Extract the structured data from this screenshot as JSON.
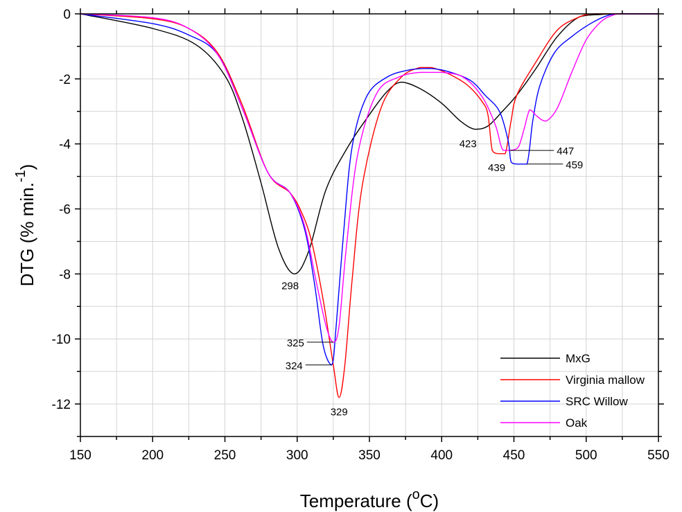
{
  "chart_data": {
    "type": "line",
    "title": "",
    "xlabel": "Temperature (",
    "xlabel_sup": "o",
    "xlabel_unit": "C)",
    "ylabel": "DTG (% min.",
    "ylabel_sup": "-1",
    "ylabel_close": ")",
    "xlim": [
      150,
      550
    ],
    "ylim": [
      -13,
      0
    ],
    "xticks": [
      150,
      200,
      250,
      300,
      350,
      400,
      450,
      500,
      550
    ],
    "yticks": [
      0,
      -2,
      -4,
      -6,
      -8,
      -10,
      -12
    ],
    "grid": true,
    "legend_position": "bottom-right",
    "series": [
      {
        "name": "MxG",
        "color": "#000000",
        "x": [
          150,
          200,
          230,
          250,
          262,
          275,
          287,
          298,
          308,
          320,
          335,
          350,
          362,
          372,
          385,
          400,
          413,
          423,
          432,
          442,
          452,
          465,
          480,
          495,
          510,
          525,
          550
        ],
        "y": [
          0,
          -0.45,
          -0.95,
          -1.9,
          -3.2,
          -5.2,
          -7.2,
          -8.0,
          -7.3,
          -5.4,
          -4.1,
          -3.1,
          -2.4,
          -2.1,
          -2.3,
          -2.75,
          -3.3,
          -3.55,
          -3.45,
          -3.0,
          -2.5,
          -1.7,
          -0.7,
          -0.1,
          -0.02,
          0,
          0
        ]
      },
      {
        "name": "Virginia mallow",
        "color": "#ff0000",
        "x": [
          150,
          200,
          225,
          245,
          262,
          280,
          295,
          303,
          310,
          318,
          325,
          329,
          333,
          338,
          345,
          358,
          372,
          385,
          393,
          405,
          418,
          428,
          432,
          435,
          439,
          444,
          448,
          452,
          465,
          480,
          495,
          505,
          520,
          550
        ],
        "y": [
          0,
          -0.15,
          -0.45,
          -1.2,
          -2.8,
          -4.9,
          -5.5,
          -6.1,
          -7.0,
          -8.8,
          -10.8,
          -11.8,
          -10.8,
          -8.2,
          -5.3,
          -2.9,
          -1.95,
          -1.65,
          -1.65,
          -1.85,
          -2.2,
          -2.7,
          -3.1,
          -4.2,
          -4.3,
          -4.3,
          -3.3,
          -2.5,
          -1.5,
          -0.5,
          -0.1,
          0,
          0,
          0
        ]
      },
      {
        "name": "SRC Willow",
        "color": "#0000ff",
        "x": [
          150,
          200,
          225,
          245,
          262,
          280,
          295,
          305,
          312,
          318,
          324,
          327,
          332,
          338,
          348,
          362,
          378,
          392,
          405,
          420,
          430,
          440,
          446,
          448,
          452,
          459,
          463,
          468,
          478,
          490,
          503,
          515,
          525,
          550
        ],
        "y": [
          0,
          -0.3,
          -0.65,
          -1.25,
          -2.9,
          -4.9,
          -5.5,
          -6.6,
          -8.3,
          -10.2,
          -10.8,
          -9.6,
          -6.8,
          -4.1,
          -2.55,
          -1.95,
          -1.72,
          -1.68,
          -1.78,
          -2.05,
          -2.5,
          -3.0,
          -3.9,
          -4.55,
          -4.62,
          -4.62,
          -3.3,
          -2.2,
          -1.2,
          -0.7,
          -0.3,
          -0.05,
          0,
          0
        ]
      },
      {
        "name": "Oak",
        "color": "#ff00ff",
        "x": [
          150,
          200,
          225,
          245,
          262,
          280,
          295,
          305,
          313,
          320,
          325,
          329,
          334,
          342,
          355,
          370,
          385,
          400,
          415,
          428,
          437,
          441,
          443,
          447,
          453,
          457,
          461,
          466,
          472,
          480,
          490,
          500,
          510,
          518,
          525,
          550
        ],
        "y": [
          0,
          -0.12,
          -0.45,
          -1.25,
          -2.9,
          -4.9,
          -5.5,
          -6.5,
          -8.2,
          -9.6,
          -10.1,
          -9.6,
          -7.2,
          -4.3,
          -2.45,
          -1.95,
          -1.8,
          -1.8,
          -1.95,
          -2.55,
          -3.4,
          -4.05,
          -4.2,
          -4.2,
          -4.1,
          -3.55,
          -2.95,
          -3.15,
          -3.3,
          -2.9,
          -1.8,
          -0.8,
          -0.25,
          -0.05,
          0,
          0
        ]
      }
    ],
    "annotations": [
      {
        "text": "298",
        "series": "MxG",
        "x": 298,
        "y": -8.0
      },
      {
        "text": "325",
        "series": "Oak",
        "x": 325,
        "y": -10.1
      },
      {
        "text": "324",
        "series": "SRC Willow",
        "x": 324,
        "y": -10.8
      },
      {
        "text": "329",
        "series": "Virginia mallow",
        "x": 329,
        "y": -11.8
      },
      {
        "text": "423",
        "series": "MxG",
        "x": 423,
        "y": -3.55
      },
      {
        "text": "439",
        "series": "Virginia mallow",
        "x": 439,
        "y": -4.3
      },
      {
        "text": "447",
        "series": "Oak",
        "x": 447,
        "y": -4.2
      },
      {
        "text": "459",
        "series": "SRC Willow",
        "x": 459,
        "y": -4.62
      }
    ]
  }
}
